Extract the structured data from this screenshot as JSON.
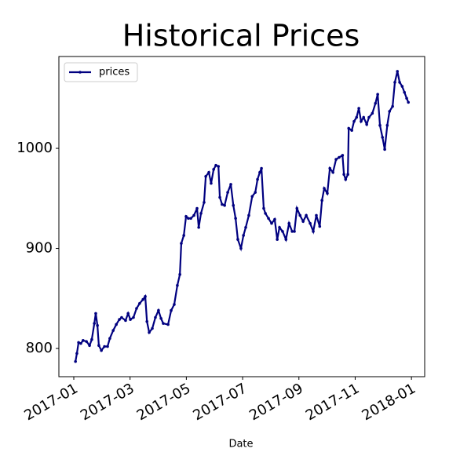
{
  "chart_data": {
    "type": "line",
    "title": "Historical Prices",
    "xlabel": "Date",
    "series": [
      {
        "name": "prices",
        "color": "#000080",
        "x": [
          1.06,
          1.11,
          1.17,
          1.25,
          1.33,
          1.45,
          1.56,
          1.64,
          1.73,
          1.78,
          1.84,
          1.89,
          1.98,
          2.09,
          2.2,
          2.28,
          2.4,
          2.51,
          2.62,
          2.7,
          2.84,
          2.93,
          3.01,
          3.12,
          3.23,
          3.34,
          3.46,
          3.54,
          3.6,
          3.68,
          3.79,
          3.9,
          4.01,
          4.1,
          4.18,
          4.35,
          4.46,
          4.57,
          4.68,
          4.77,
          4.82,
          4.91,
          4.99,
          5.07,
          5.16,
          5.27,
          5.38,
          5.44,
          5.52,
          5.63,
          5.69,
          5.8,
          5.88,
          5.97,
          6.05,
          6.14,
          6.19,
          6.27,
          6.36,
          6.47,
          6.58,
          6.67,
          6.75,
          6.83,
          6.94,
          7.03,
          7.11,
          7.22,
          7.34,
          7.45,
          7.53,
          7.61,
          7.67,
          7.75,
          7.81,
          7.92,
          8.03,
          8.14,
          8.23,
          8.31,
          8.42,
          8.54,
          8.65,
          8.76,
          8.84,
          8.93,
          9.04,
          9.15,
          9.26,
          9.4,
          9.51,
          9.62,
          9.74,
          9.82,
          9.9,
          10.01,
          10.1,
          10.21,
          10.32,
          10.43,
          10.55,
          10.6,
          10.66,
          10.74,
          10.77,
          10.88,
          10.96,
          11.05,
          11.13,
          11.21,
          11.3,
          11.41,
          11.49,
          11.61,
          11.72,
          11.8,
          11.88,
          11.97,
          12.05,
          12.14,
          12.22,
          12.33,
          12.41,
          12.5,
          12.58,
          12.67,
          12.75,
          12.83,
          12.89
        ],
        "values": [
          787,
          795,
          806,
          805,
          808,
          807,
          803,
          809,
          825,
          835,
          823,
          803,
          798,
          802,
          802,
          810,
          818,
          824,
          829,
          831,
          828,
          835,
          829,
          831,
          840,
          845,
          849,
          852,
          827,
          816,
          820,
          831,
          838,
          830,
          825,
          824,
          838,
          844,
          863,
          874,
          905,
          913,
          932,
          930,
          930,
          933,
          940,
          921,
          935,
          946,
          972,
          976,
          965,
          979,
          983,
          982,
          951,
          944,
          943,
          956,
          964,
          943,
          930,
          909,
          900,
          913,
          921,
          933,
          952,
          956,
          969,
          976,
          980,
          940,
          935,
          930,
          925,
          929,
          909,
          921,
          917,
          909,
          925,
          917,
          917,
          940,
          933,
          927,
          933,
          925,
          917,
          933,
          922,
          948,
          960,
          955,
          980,
          976,
          989,
          991,
          993,
          974,
          969,
          974,
          1020,
          1018,
          1027,
          1031,
          1040,
          1027,
          1031,
          1024,
          1031,
          1035,
          1045,
          1054,
          1023,
          1011,
          999,
          1023,
          1037,
          1042,
          1066,
          1077,
          1066,
          1062,
          1056,
          1050,
          1046
        ]
      }
    ],
    "xlim": [
      0.47,
      13.47
    ],
    "xticks": [
      {
        "value": 1,
        "label": "2017-01"
      },
      {
        "value": 3,
        "label": "2017-03"
      },
      {
        "value": 5,
        "label": "2017-05"
      },
      {
        "value": 7,
        "label": "2017-07"
      },
      {
        "value": 9,
        "label": "2017-09"
      },
      {
        "value": 11,
        "label": "2017-11"
      },
      {
        "value": 13,
        "label": "2018-01"
      }
    ],
    "ylim": [
      771.8,
      1091.8
    ],
    "yticks": [
      800,
      900,
      1000
    ],
    "legend": "upper left",
    "grid": false
  }
}
